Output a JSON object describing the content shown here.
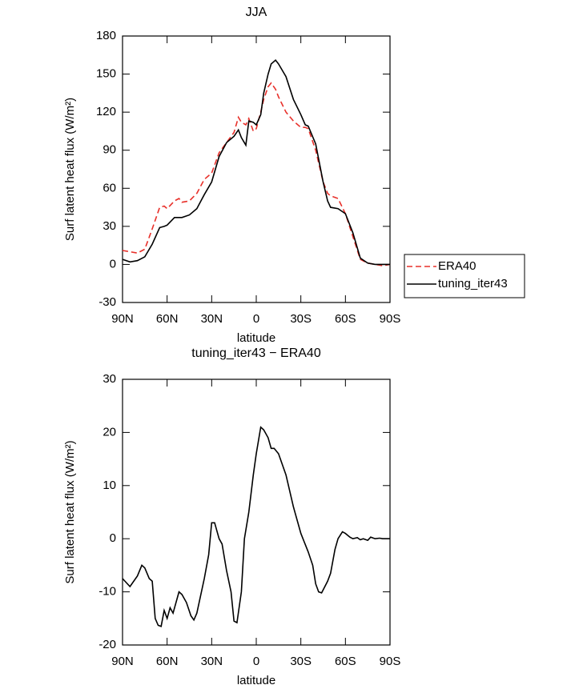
{
  "chart_data": [
    {
      "type": "line",
      "title": "JJA",
      "x_label": "latitude",
      "y_label": "Surf latent heat flux (W/m²)",
      "x": [
        90,
        85,
        80,
        75,
        70,
        65,
        62,
        60,
        55,
        52,
        50,
        45,
        40,
        35,
        30,
        25,
        20,
        15,
        12,
        10,
        7,
        5,
        2,
        0,
        -3,
        -5,
        -8,
        -10,
        -13,
        -15,
        -20,
        -25,
        -30,
        -33,
        -35,
        -40,
        -45,
        -48,
        -50,
        -55,
        -60,
        -65,
        -70,
        -75,
        -80,
        -85,
        -90
      ],
      "series": [
        {
          "name": "ERA40",
          "color": "#e8302a",
          "linestyle": "dashed",
          "values": [
            11,
            10,
            9,
            12,
            28,
            45,
            46,
            44,
            50,
            52,
            49,
            50,
            56,
            67,
            72,
            88,
            96,
            104,
            116,
            112,
            110,
            115,
            105,
            107,
            120,
            130,
            140,
            143,
            138,
            132,
            120,
            113,
            108,
            108,
            107,
            90,
            65,
            56,
            54,
            52,
            40,
            22,
            4,
            1,
            0,
            -1,
            0
          ]
        },
        {
          "name": "tuning_iter43",
          "color": "#000000",
          "linestyle": "solid",
          "values": [
            4,
            2,
            3,
            6,
            16,
            29,
            30,
            31,
            37,
            37,
            37,
            39,
            44,
            55,
            65,
            85,
            96,
            101,
            106,
            100,
            94,
            113,
            112,
            110,
            118,
            135,
            150,
            158,
            161,
            158,
            148,
            130,
            118,
            110,
            109,
            95,
            65,
            50,
            45,
            44,
            40,
            25,
            5,
            1,
            0,
            0,
            0
          ]
        }
      ],
      "xlim": [
        90,
        -90
      ],
      "xticks": [
        {
          "value": 90,
          "label": "90N"
        },
        {
          "value": 60,
          "label": "60N"
        },
        {
          "value": 30,
          "label": "30N"
        },
        0,
        {
          "value": -30,
          "label": "30S"
        },
        {
          "value": -60,
          "label": "60S"
        },
        {
          "value": -90,
          "label": "90S"
        }
      ],
      "ylim": [
        -30,
        180
      ],
      "yticks": [
        -30,
        0,
        30,
        60,
        90,
        120,
        150,
        180
      ],
      "legend": "right"
    },
    {
      "type": "line",
      "title": "tuning_iter43 − ERA40",
      "x_label": "latitude",
      "y_label": "Surf latent heat flux (W/m²)",
      "x": [
        90,
        85,
        80,
        77,
        75,
        72,
        70,
        68,
        66,
        64,
        62,
        60,
        58,
        56,
        52,
        50,
        47,
        44,
        42,
        40,
        35,
        32,
        30,
        28,
        25,
        23,
        20,
        17,
        15,
        13,
        10,
        8,
        5,
        2,
        0,
        -3,
        -5,
        -8,
        -10,
        -12,
        -15,
        -20,
        -25,
        -30,
        -35,
        -38,
        -40,
        -42,
        -44,
        -48,
        -50,
        -53,
        -55,
        -58,
        -60,
        -63,
        -65,
        -68,
        -70,
        -72,
        -75,
        -77,
        -80,
        -83,
        -85,
        -88,
        -90
      ],
      "series": [
        {
          "name": "tuning_iter43 − ERA40",
          "color": "#000000",
          "linestyle": "solid",
          "values": [
            -7.5,
            -9,
            -7,
            -5,
            -5.5,
            -7.5,
            -8,
            -15,
            -16.3,
            -16.5,
            -13.5,
            -15,
            -13,
            -14,
            -10,
            -10.5,
            -12,
            -14.5,
            -15.3,
            -14,
            -7.5,
            -3,
            3,
            3,
            0,
            -1,
            -6,
            -10,
            -15.5,
            -15.8,
            -10,
            0,
            5,
            12,
            16,
            21,
            20.5,
            19,
            17,
            17,
            16,
            12,
            6,
            1,
            -2.5,
            -5,
            -8.5,
            -10,
            -10.2,
            -8,
            -6.5,
            -2,
            0,
            1.3,
            1,
            0.3,
            0,
            0.2,
            -0.2,
            0,
            -0.3,
            0.3,
            0,
            0.1,
            0,
            0,
            0
          ]
        }
      ],
      "xlim": [
        90,
        -90
      ],
      "xticks": [
        {
          "value": 90,
          "label": "90N"
        },
        {
          "value": 60,
          "label": "60N"
        },
        {
          "value": 30,
          "label": "30N"
        },
        0,
        {
          "value": -30,
          "label": "30S"
        },
        {
          "value": -60,
          "label": "60S"
        },
        {
          "value": -90,
          "label": "90S"
        }
      ],
      "ylim": [
        -20,
        30
      ],
      "yticks": [
        -20,
        -10,
        0,
        10,
        20,
        30
      ]
    }
  ]
}
